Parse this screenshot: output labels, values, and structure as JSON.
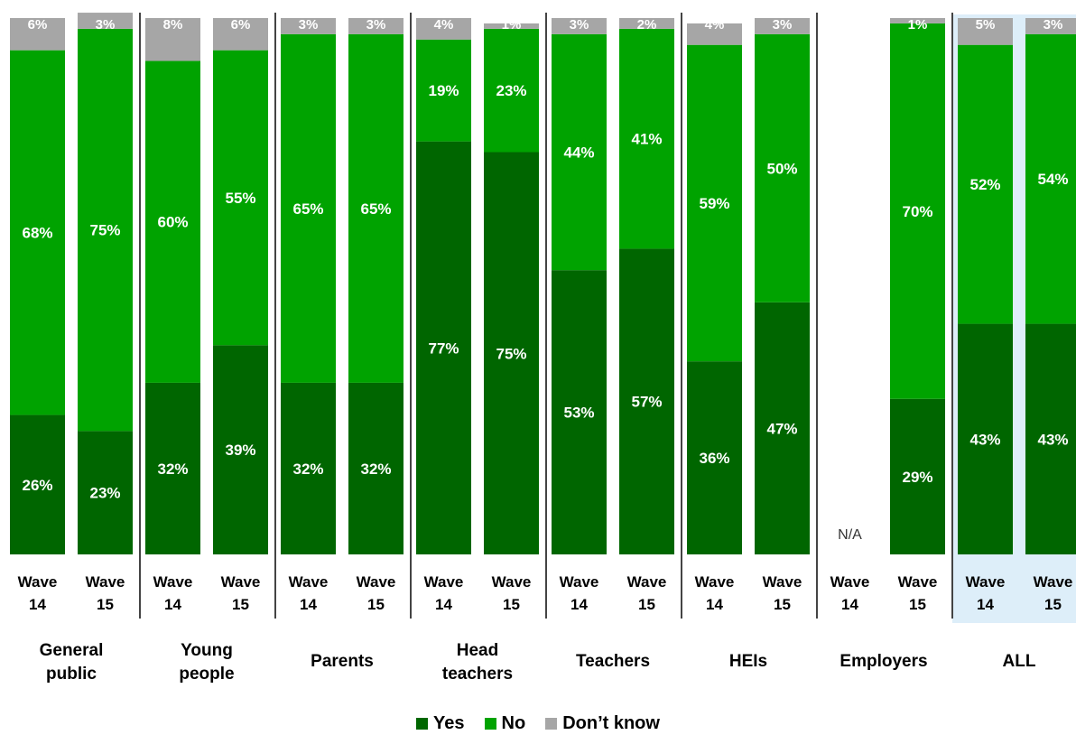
{
  "chart_data": {
    "type": "bar",
    "stacked": true,
    "ylim": [
      0,
      100
    ],
    "groups": [
      {
        "name": "General public",
        "lines": [
          "General",
          "public"
        ],
        "bars": [
          {
            "label": [
              "Wave",
              "14"
            ],
            "yes": 26,
            "no": 68,
            "dont_know": 6
          },
          {
            "label": [
              "Wave",
              "15"
            ],
            "yes": 23,
            "no": 75,
            "dont_know": 3
          }
        ]
      },
      {
        "name": "Young people",
        "lines": [
          "Young",
          "people"
        ],
        "bars": [
          {
            "label": [
              "Wave",
              "14"
            ],
            "yes": 32,
            "no": 60,
            "dont_know": 8
          },
          {
            "label": [
              "Wave",
              "15"
            ],
            "yes": 39,
            "no": 55,
            "dont_know": 6
          }
        ]
      },
      {
        "name": "Parents",
        "lines": [
          "Parents"
        ],
        "bars": [
          {
            "label": [
              "Wave",
              "14"
            ],
            "yes": 32,
            "no": 65,
            "dont_know": 3
          },
          {
            "label": [
              "Wave",
              "15"
            ],
            "yes": 32,
            "no": 65,
            "dont_know": 3
          }
        ]
      },
      {
        "name": "Head teachers",
        "lines": [
          "Head",
          "teachers"
        ],
        "bars": [
          {
            "label": [
              "Wave",
              "14"
            ],
            "yes": 77,
            "no": 19,
            "dont_know": 4
          },
          {
            "label": [
              "Wave",
              "15"
            ],
            "yes": 75,
            "no": 23,
            "dont_know": 1
          }
        ]
      },
      {
        "name": "Teachers",
        "lines": [
          "Teachers"
        ],
        "bars": [
          {
            "label": [
              "Wave",
              "14"
            ],
            "yes": 53,
            "no": 44,
            "dont_know": 3
          },
          {
            "label": [
              "Wave",
              "15"
            ],
            "yes": 57,
            "no": 41,
            "dont_know": 2
          }
        ]
      },
      {
        "name": "HEIs",
        "lines": [
          "HEIs"
        ],
        "bars": [
          {
            "label": [
              "Wave",
              "14"
            ],
            "yes": 36,
            "no": 59,
            "dont_know": 4
          },
          {
            "label": [
              "Wave",
              "15"
            ],
            "yes": 47,
            "no": 50,
            "dont_know": 3
          }
        ]
      },
      {
        "name": "Employers",
        "lines": [
          "Employers"
        ],
        "bars": [
          {
            "label": [
              "Wave",
              "14"
            ],
            "na": "N/A"
          },
          {
            "label": [
              "Wave",
              "15"
            ],
            "yes": 29,
            "no": 70,
            "dont_know": 1
          }
        ]
      },
      {
        "name": "ALL",
        "lines": [
          "ALL"
        ],
        "highlight": true,
        "bars": [
          {
            "label": [
              "Wave",
              "14"
            ],
            "yes": 43,
            "no": 52,
            "dont_know": 5
          },
          {
            "label": [
              "Wave",
              "15"
            ],
            "yes": 43,
            "no": 54,
            "dont_know": 3
          }
        ]
      }
    ],
    "legend": [
      {
        "key": "yes",
        "label": "Yes",
        "color": "#006600"
      },
      {
        "key": "no",
        "label": "No",
        "color": "#00A300"
      },
      {
        "key": "dont_know",
        "label": "Don’t know",
        "color": "#A6A6A6"
      }
    ],
    "highlight_color": "#DDEEF9"
  }
}
